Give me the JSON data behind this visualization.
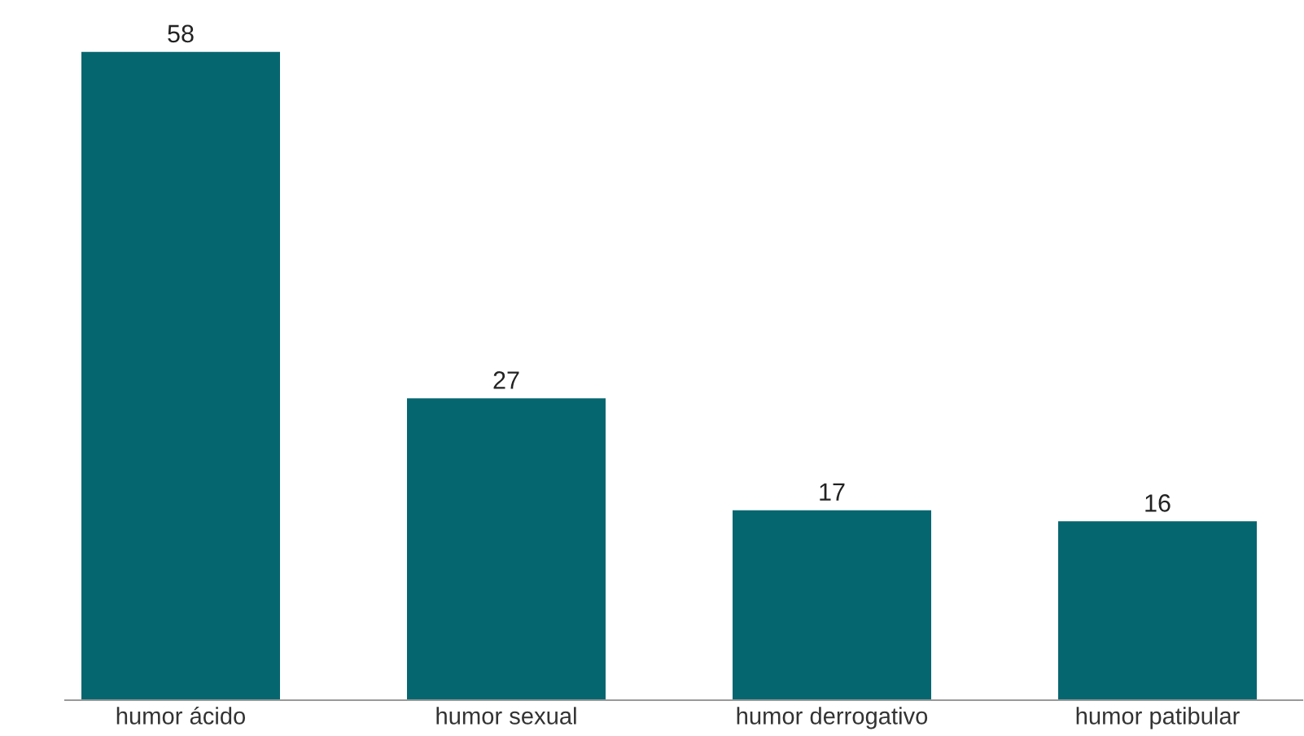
{
  "chart_data": {
    "type": "bar",
    "categories": [
      "humor ácido",
      "humor sexual",
      "humor derrogativo",
      "humor patibular"
    ],
    "values": [
      58,
      27,
      17,
      16
    ],
    "color": "#066670",
    "data_labels": true,
    "grid": false,
    "legend": false
  }
}
